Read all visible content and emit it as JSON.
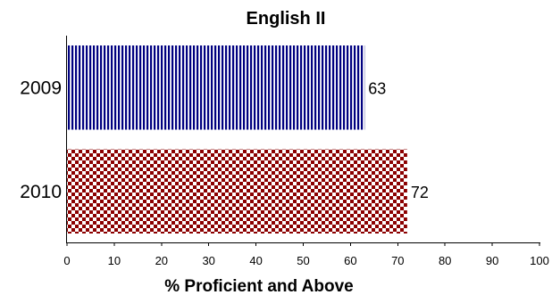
{
  "chart_data": {
    "type": "bar",
    "orientation": "horizontal",
    "title": "English II",
    "xlabel": "% Proficient and Above",
    "ylabel": "",
    "categories": [
      "2009",
      "2010"
    ],
    "values": [
      63,
      72
    ],
    "xlim": [
      0,
      100
    ],
    "xticks": [
      "0",
      "10",
      "20",
      "30",
      "40",
      "50",
      "60",
      "70",
      "80",
      "90",
      "100"
    ],
    "grid": false,
    "legend": "none",
    "bar_styles": [
      {
        "pattern": "vertical-stripes",
        "color": "#000080"
      },
      {
        "pattern": "checkerboard",
        "color": "#8B0000"
      }
    ]
  }
}
